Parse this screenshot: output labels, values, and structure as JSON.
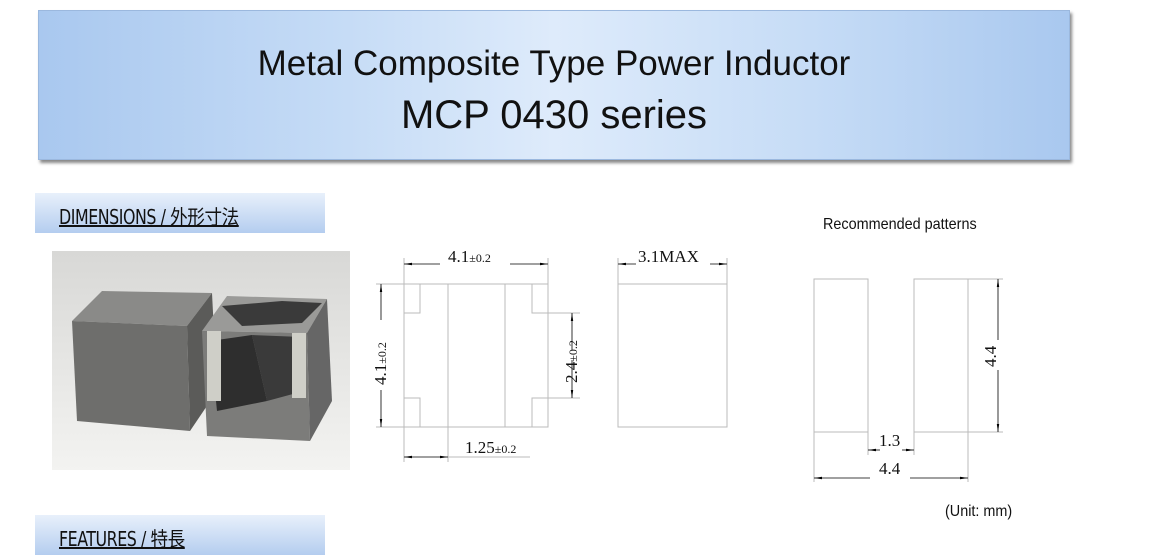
{
  "title": {
    "line1": "Metal Composite Type Power Inductor",
    "line2": "MCP 0430 series"
  },
  "sections": {
    "dimensions": "DIMENSIONS / 外形寸法",
    "features": "FEATURES / 特長"
  },
  "drawing": {
    "top_width": "4.1",
    "top_width_tol": "±0.2",
    "height": "4.1",
    "height_tol": "±0.2",
    "terminal_height": "2.4",
    "terminal_height_tol": "±0.2",
    "terminal_width": "1.25",
    "terminal_width_tol": "±0.2",
    "thickness": "3.1MAX"
  },
  "patterns": {
    "title": "Recommended patterns",
    "height": "4.4",
    "gap": "1.3",
    "width": "4.4"
  },
  "unit": "(Unit: mm)"
}
